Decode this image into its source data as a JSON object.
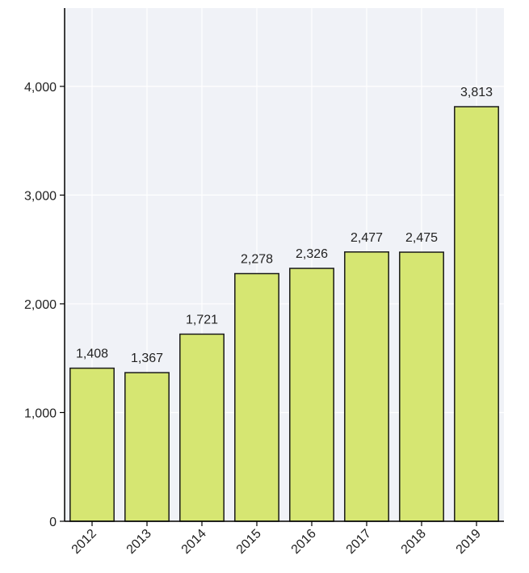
{
  "chart_data": {
    "type": "bar",
    "title": "",
    "xlabel": "",
    "ylabel": "",
    "categories": [
      "2012",
      "2013",
      "2014",
      "2015",
      "2016",
      "2017",
      "2018",
      "2019"
    ],
    "values": [
      1408,
      1367,
      1721,
      2278,
      2326,
      2477,
      2475,
      3813
    ],
    "data_labels": [
      "1,408",
      "1,367",
      "1,721",
      "2,278",
      "2,326",
      "2,477",
      "2,475",
      "3,813"
    ],
    "ylim": [
      0,
      4720
    ],
    "yticks": [
      0,
      1000,
      2000,
      3000,
      4000
    ],
    "ytick_labels": [
      "0",
      "1,000",
      "2,000",
      "3,000",
      "4,000"
    ],
    "grid": true,
    "legend": "none",
    "colors": {
      "bar_fill": "#d6e672",
      "bar_stroke": "#1a1a1a",
      "plot_background": "#f0f2f7",
      "grid": "#ffffff",
      "axis": "#000000"
    }
  }
}
